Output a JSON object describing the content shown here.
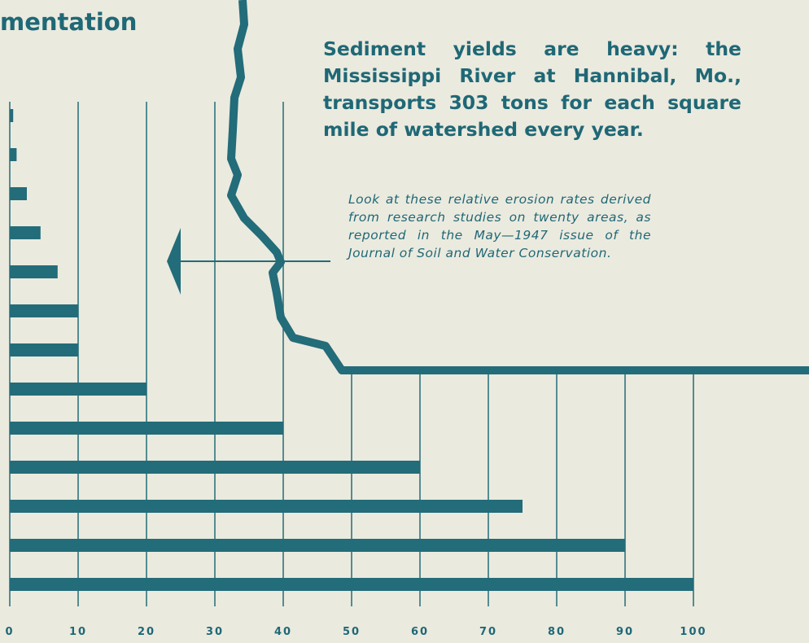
{
  "chart_data": {
    "type": "hbar",
    "title": "mentation",
    "subtitle": "Sediment yields are heavy: the Mississippi River at Hannibal, Mo., transports 303 tons for each square mile of watershed every year.",
    "annotation": "Look at these relative erosion rates derived from research studies on twenty areas, as reported in the May—1947 issue of the Journal of Soil and Water Conservation.",
    "categories": [
      null,
      null,
      null,
      null,
      null,
      null,
      null,
      null,
      null,
      null,
      null,
      null,
      null
    ],
    "values": [
      0.5,
      1,
      2.5,
      4.5,
      7,
      10,
      10,
      20,
      40,
      60,
      75,
      90,
      100
    ],
    "color": "#236c79",
    "xlim": [
      0,
      100
    ],
    "xticks": [
      0,
      10,
      20,
      30,
      40,
      50,
      60,
      70,
      80,
      90,
      100
    ],
    "grid": true
  }
}
